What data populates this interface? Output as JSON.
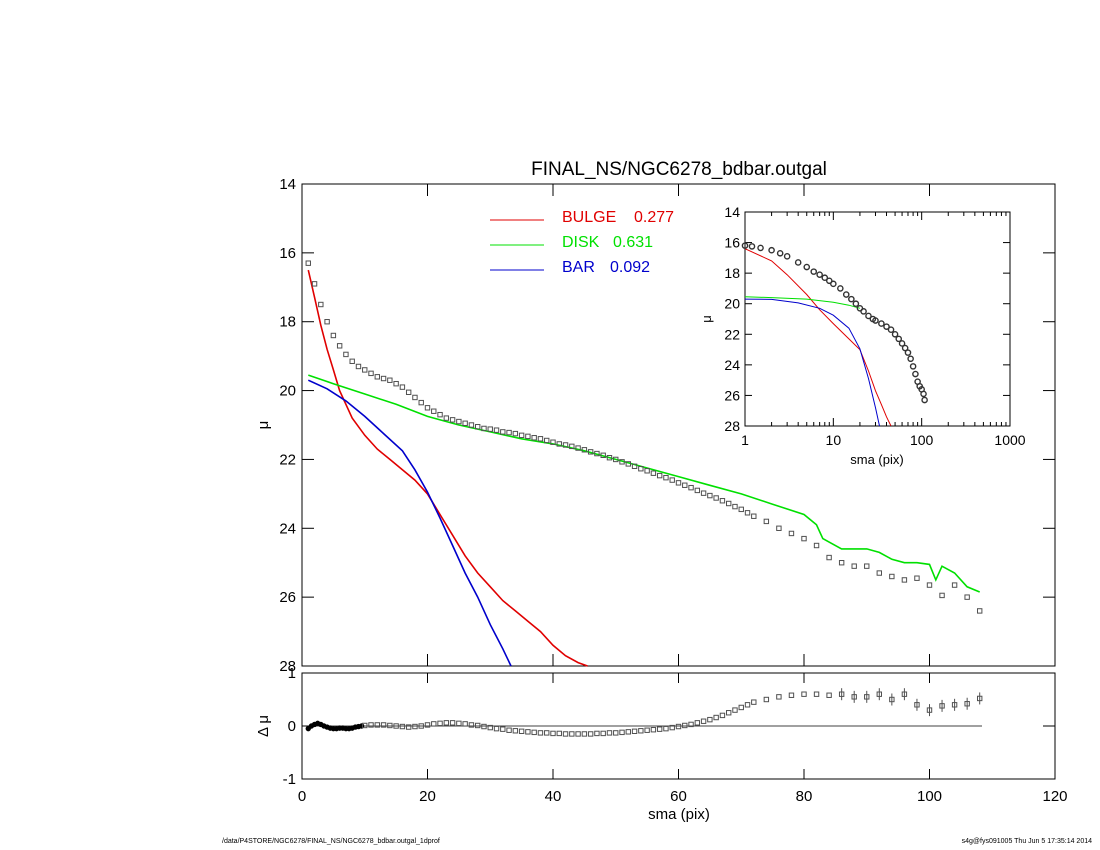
{
  "footer": {
    "path": "/data/P4STORE/NGC6278/FINAL_NS/NGC6278_bdbar.outgal_1dprof",
    "stamp": "s4g@fys091005  Thu Jun  5 17:35:14 2014"
  },
  "colors": {
    "bulge": "#e00000",
    "disk": "#00e000",
    "bar": "#0000cc",
    "data": "#505050"
  },
  "chart_data": [
    {
      "type": "line",
      "title": "FINAL_NS/NGC6278_bdbar.outgal",
      "xlabel": "",
      "ylabel": "μ",
      "xlim": [
        0,
        120
      ],
      "ylim": [
        28,
        14
      ],
      "y_inverted": true,
      "xticks": [
        0,
        20,
        40,
        60,
        80,
        100,
        120
      ],
      "yticks": [
        14,
        16,
        18,
        20,
        22,
        24,
        26,
        28
      ],
      "legend": [
        {
          "label": "BULGE",
          "value": "0.277",
          "color": "#e00000"
        },
        {
          "label": "DISK",
          "value": "0.631",
          "color": "#00e000"
        },
        {
          "label": "BAR",
          "value": "0.092",
          "color": "#0000cc"
        }
      ],
      "series": [
        {
          "name": "BULGE",
          "color": "#e00000",
          "x": [
            1,
            2,
            3,
            4,
            5,
            6,
            8,
            10,
            12,
            14,
            16,
            18,
            20,
            22,
            24,
            26,
            28,
            30,
            32,
            34,
            36,
            38,
            40,
            42,
            44,
            45.5
          ],
          "y": [
            16.5,
            17.3,
            18.1,
            18.8,
            19.4,
            20.0,
            20.8,
            21.3,
            21.7,
            22.0,
            22.3,
            22.6,
            23.0,
            23.6,
            24.2,
            24.8,
            25.3,
            25.7,
            26.1,
            26.4,
            26.7,
            27.0,
            27.4,
            27.7,
            27.9,
            28.0
          ]
        },
        {
          "name": "DISK",
          "color": "#00e000",
          "x": [
            1,
            5,
            10,
            15,
            20,
            25,
            30,
            35,
            40,
            45,
            50,
            55,
            60,
            65,
            70,
            75,
            80,
            82,
            83,
            84,
            86,
            88,
            90,
            92,
            94,
            96,
            98,
            100,
            101,
            102,
            104,
            106,
            108
          ],
          "y": [
            19.55,
            19.8,
            20.1,
            20.4,
            20.75,
            21.0,
            21.2,
            21.4,
            21.55,
            21.75,
            22.0,
            22.25,
            22.5,
            22.75,
            23.0,
            23.3,
            23.6,
            23.9,
            24.3,
            24.4,
            24.6,
            24.6,
            24.6,
            24.7,
            24.9,
            25.0,
            25.0,
            25.05,
            25.5,
            25.1,
            25.3,
            25.7,
            25.85
          ]
        },
        {
          "name": "BAR",
          "color": "#0000cc",
          "x": [
            1,
            4,
            7,
            10,
            13,
            16,
            18,
            20,
            22,
            24,
            26,
            28,
            30,
            32,
            33.3
          ],
          "y": [
            19.7,
            19.95,
            20.3,
            20.75,
            21.25,
            21.75,
            22.3,
            22.95,
            23.7,
            24.5,
            25.3,
            26.0,
            26.8,
            27.5,
            28.0
          ]
        },
        {
          "name": "",
          "kind": "symbols",
          "color": "#505050",
          "x": [
            1,
            2,
            3,
            4,
            5,
            6,
            7,
            8,
            9,
            10,
            11,
            12,
            13,
            14,
            15,
            16,
            17,
            18,
            19,
            20,
            21,
            22,
            23,
            24,
            25,
            26,
            27,
            28,
            29,
            30,
            31,
            32,
            33,
            34,
            35,
            36,
            37,
            38,
            39,
            40,
            41,
            42,
            43,
            44,
            45,
            46,
            47,
            48,
            49,
            50,
            51,
            52,
            53,
            54,
            55,
            56,
            57,
            58,
            59,
            60,
            61,
            62,
            63,
            64,
            65,
            66,
            67,
            68,
            69,
            70,
            71,
            72,
            74,
            76,
            78,
            80,
            82,
            84,
            86,
            88,
            90,
            92,
            94,
            96,
            98,
            100,
            102,
            104,
            106,
            108
          ],
          "y": [
            16.3,
            16.9,
            17.5,
            18.0,
            18.4,
            18.7,
            18.95,
            19.15,
            19.3,
            19.4,
            19.5,
            19.6,
            19.65,
            19.7,
            19.8,
            19.9,
            20.05,
            20.2,
            20.35,
            20.5,
            20.6,
            20.7,
            20.8,
            20.85,
            20.9,
            20.95,
            21.0,
            21.05,
            21.1,
            21.12,
            21.15,
            21.2,
            21.22,
            21.25,
            21.3,
            21.33,
            21.37,
            21.4,
            21.45,
            21.5,
            21.55,
            21.58,
            21.62,
            21.67,
            21.72,
            21.78,
            21.83,
            21.88,
            21.95,
            22.0,
            22.07,
            22.13,
            22.2,
            22.27,
            22.33,
            22.4,
            22.47,
            22.53,
            22.6,
            22.68,
            22.75,
            22.82,
            22.9,
            22.98,
            23.05,
            23.12,
            23.2,
            23.28,
            23.37,
            23.45,
            23.55,
            23.65,
            23.8,
            24.0,
            24.15,
            24.3,
            24.5,
            24.85,
            25.0,
            25.1,
            25.1,
            25.3,
            25.4,
            25.5,
            25.45,
            25.65,
            25.95,
            25.65,
            26.0,
            26.4
          ]
        }
      ]
    },
    {
      "type": "scatter",
      "xlabel": "sma (pix)",
      "ylabel": "Δ μ",
      "xlim": [
        0,
        120
      ],
      "ylim": [
        -1,
        1
      ],
      "xticks": [
        0,
        20,
        40,
        60,
        80,
        100,
        120
      ],
      "yticks": [
        -1,
        0,
        1
      ],
      "series": [
        {
          "name": "",
          "kind": "symbols",
          "color": "#505050",
          "x": [
            1,
            1.5,
            2,
            2.5,
            3,
            3.5,
            4,
            4.5,
            5,
            5.5,
            6,
            6.5,
            7,
            7.5,
            8,
            8.5,
            9,
            9.5,
            10,
            11,
            12,
            13,
            14,
            15,
            16,
            17,
            18,
            19,
            20,
            21,
            22,
            23,
            24,
            25,
            26,
            27,
            28,
            29,
            30,
            31,
            32,
            33,
            34,
            35,
            36,
            37,
            38,
            39,
            40,
            41,
            42,
            43,
            44,
            45,
            46,
            47,
            48,
            49,
            50,
            51,
            52,
            53,
            54,
            55,
            56,
            57,
            58,
            59,
            60,
            61,
            62,
            63,
            64,
            65,
            66,
            67,
            68,
            69,
            70,
            71,
            72,
            74,
            76,
            78,
            80,
            82,
            84,
            86,
            88,
            90,
            92,
            94,
            96,
            98,
            100,
            102,
            104,
            106,
            108
          ],
          "y": [
            -0.05,
            0.0,
            0.03,
            0.05,
            0.03,
            0.0,
            -0.02,
            -0.04,
            -0.05,
            -0.05,
            -0.04,
            -0.04,
            -0.05,
            -0.05,
            -0.04,
            -0.02,
            -0.01,
            0.0,
            0.01,
            0.02,
            0.02,
            0.02,
            0.01,
            0.0,
            -0.01,
            -0.02,
            -0.01,
            0.0,
            0.02,
            0.04,
            0.05,
            0.06,
            0.06,
            0.05,
            0.04,
            0.02,
            0.01,
            -0.01,
            -0.03,
            -0.05,
            -0.06,
            -0.08,
            -0.09,
            -0.1,
            -0.11,
            -0.12,
            -0.13,
            -0.13,
            -0.14,
            -0.14,
            -0.15,
            -0.15,
            -0.15,
            -0.15,
            -0.15,
            -0.14,
            -0.14,
            -0.13,
            -0.13,
            -0.12,
            -0.11,
            -0.1,
            -0.09,
            -0.08,
            -0.07,
            -0.06,
            -0.05,
            -0.03,
            -0.01,
            0.01,
            0.03,
            0.06,
            0.09,
            0.12,
            0.16,
            0.2,
            0.25,
            0.3,
            0.35,
            0.4,
            0.45,
            0.5,
            0.55,
            0.58,
            0.6,
            0.6,
            0.58,
            0.6,
            0.55,
            0.55,
            0.6,
            0.5,
            0.6,
            0.4,
            0.3,
            0.38,
            0.4,
            0.42,
            0.52
          ]
        }
      ]
    },
    {
      "type": "line",
      "xlabel": "sma (pix)",
      "ylabel": "μ",
      "x_scale": "log",
      "xlim": [
        1,
        1000
      ],
      "ylim": [
        28,
        14
      ],
      "y_inverted": true,
      "xticks": [
        1,
        10,
        100,
        1000
      ],
      "yticks": [
        14,
        16,
        18,
        20,
        22,
        24,
        26,
        28
      ],
      "series": [
        {
          "name": "",
          "color": "#e00000",
          "x": [
            1,
            2,
            3,
            5,
            7,
            10,
            15,
            20,
            25,
            30,
            35,
            40,
            45
          ],
          "y": [
            16.4,
            17.2,
            18.1,
            19.4,
            20.4,
            21.3,
            22.3,
            23.0,
            24.4,
            25.7,
            26.6,
            27.4,
            28.0
          ]
        },
        {
          "name": "",
          "color": "#00e000",
          "x": [
            1,
            2,
            5,
            10,
            15,
            20
          ],
          "y": [
            19.55,
            19.6,
            19.7,
            19.9,
            20.1,
            20.3
          ]
        },
        {
          "name": "",
          "color": "#0000cc",
          "x": [
            1,
            2,
            4,
            7,
            10,
            15,
            20,
            25,
            30,
            33.3
          ],
          "y": [
            19.7,
            19.72,
            19.95,
            20.3,
            20.75,
            21.6,
            22.95,
            24.9,
            26.8,
            28.0
          ]
        },
        {
          "name": "",
          "kind": "symbols",
          "color": "#505050",
          "x": [
            1,
            1.2,
            1.5,
            2,
            2.5,
            3,
            4,
            5,
            6,
            7,
            8,
            9,
            10,
            12,
            14,
            16,
            18,
            20,
            22,
            25,
            28,
            30,
            35,
            40,
            45,
            50,
            55,
            60,
            65,
            70,
            75,
            80,
            85,
            90,
            95,
            100,
            105,
            108
          ],
          "y": [
            16.2,
            16.25,
            16.35,
            16.5,
            16.7,
            16.9,
            17.3,
            17.6,
            17.9,
            18.1,
            18.3,
            18.5,
            18.7,
            19.0,
            19.4,
            19.7,
            20.0,
            20.3,
            20.5,
            20.8,
            21.0,
            21.1,
            21.3,
            21.5,
            21.7,
            22.0,
            22.3,
            22.6,
            22.9,
            23.2,
            23.6,
            24.1,
            24.6,
            25.1,
            25.4,
            25.6,
            25.9,
            26.3
          ]
        }
      ]
    }
  ]
}
